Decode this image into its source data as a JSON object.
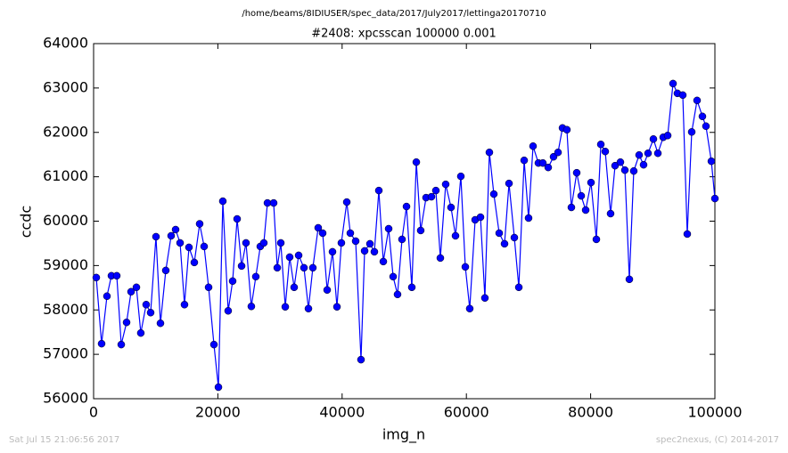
{
  "chart_data": {
    "type": "line",
    "suptitle": "/home/beams/8IDIUSER/spec_data/2017/July2017/lettinga20170710",
    "title": "#2408: xpcsscan 100000 0.001",
    "xlabel": "img_n",
    "ylabel": "ccdc",
    "footer_left": "Sat Jul 15 21:06:56 2017",
    "footer_right": "spec2nexus, (C) 2014-2017",
    "xlim": [
      0,
      100000
    ],
    "xticks": [
      0,
      20000,
      40000,
      60000,
      80000,
      100000
    ],
    "ylim": [
      56000,
      64000
    ],
    "yticks": [
      56000,
      57000,
      58000,
      59000,
      60000,
      61000,
      62000,
      63000,
      64000
    ],
    "x": [
      430,
      1290,
      2150,
      2870,
      3730,
      4450,
      5310,
      6030,
      6890,
      7600,
      8460,
      9180,
      10040,
      10760,
      11620,
      12480,
      13200,
      13920,
      14630,
      15350,
      16210,
      17070,
      17790,
      18510,
      19370,
      20090,
      20800,
      21660,
      22380,
      23100,
      23820,
      24530,
      25390,
      26110,
      26830,
      27400,
      27980,
      28980,
      29560,
      30130,
      30850,
      31560,
      32280,
      33000,
      33860,
      34580,
      35290,
      36150,
      36870,
      37590,
      38450,
      39170,
      39880,
      40750,
      41320,
      42180,
      43040,
      43620,
      44480,
      45190,
      45910,
      46630,
      47490,
      48210,
      48920,
      49640,
      50360,
      51220,
      51940,
      52650,
      53510,
      54380,
      55090,
      55810,
      56670,
      57530,
      58250,
      59110,
      59830,
      60540,
      61410,
      62270,
      62980,
      63700,
      64420,
      65280,
      66140,
      66860,
      67720,
      68440,
      69300,
      70010,
      70730,
      71590,
      72310,
      73170,
      74030,
      74750,
      75470,
      76180,
      76900,
      77760,
      78480,
      79200,
      80060,
      80920,
      81640,
      82350,
      83210,
      83930,
      84790,
      85510,
      86230,
      86940,
      87800,
      88520,
      89240,
      90100,
      90820,
      91680,
      92400,
      93260,
      93970,
      94830,
      95550,
      96270,
      97130,
      97990,
      98560,
      99430,
      100000
    ],
    "series": [
      {
        "name": "ccdc",
        "color": "#0000ff",
        "values": [
          58730,
          57240,
          58310,
          58770,
          58770,
          57220,
          57720,
          58410,
          58510,
          57480,
          58120,
          57940,
          59650,
          57700,
          58890,
          59670,
          59810,
          59510,
          58120,
          59410,
          59070,
          59940,
          59430,
          58510,
          57220,
          56260,
          60450,
          57980,
          58650,
          60050,
          58990,
          59510,
          58080,
          58750,
          59430,
          59510,
          60410,
          60410,
          58950,
          59510,
          58070,
          59190,
          58510,
          59230,
          58950,
          58030,
          58950,
          59850,
          59730,
          58450,
          59310,
          58070,
          59510,
          60430,
          59730,
          59550,
          56880,
          59330,
          59490,
          59310,
          60690,
          59090,
          59830,
          58750,
          58350,
          59590,
          60330,
          58510,
          61330,
          59790,
          60530,
          60550,
          60690,
          59170,
          60830,
          60310,
          59670,
          61010,
          58970,
          58030,
          60030,
          60090,
          58270,
          61550,
          60610,
          59730,
          59490,
          60850,
          59630,
          58510,
          61370,
          60070,
          61690,
          61310,
          61310,
          61210,
          61450,
          61550,
          62100,
          62060,
          60310,
          61090,
          60570,
          60250,
          60870,
          59590,
          61730,
          61570,
          60170,
          61250,
          61330,
          61150,
          58690,
          61130,
          61490,
          61270,
          61530,
          61850,
          61530,
          61890,
          61930,
          63100,
          62880,
          62840,
          59710,
          62010,
          62720,
          62360,
          62140,
          61350,
          60510
        ]
      }
    ]
  }
}
